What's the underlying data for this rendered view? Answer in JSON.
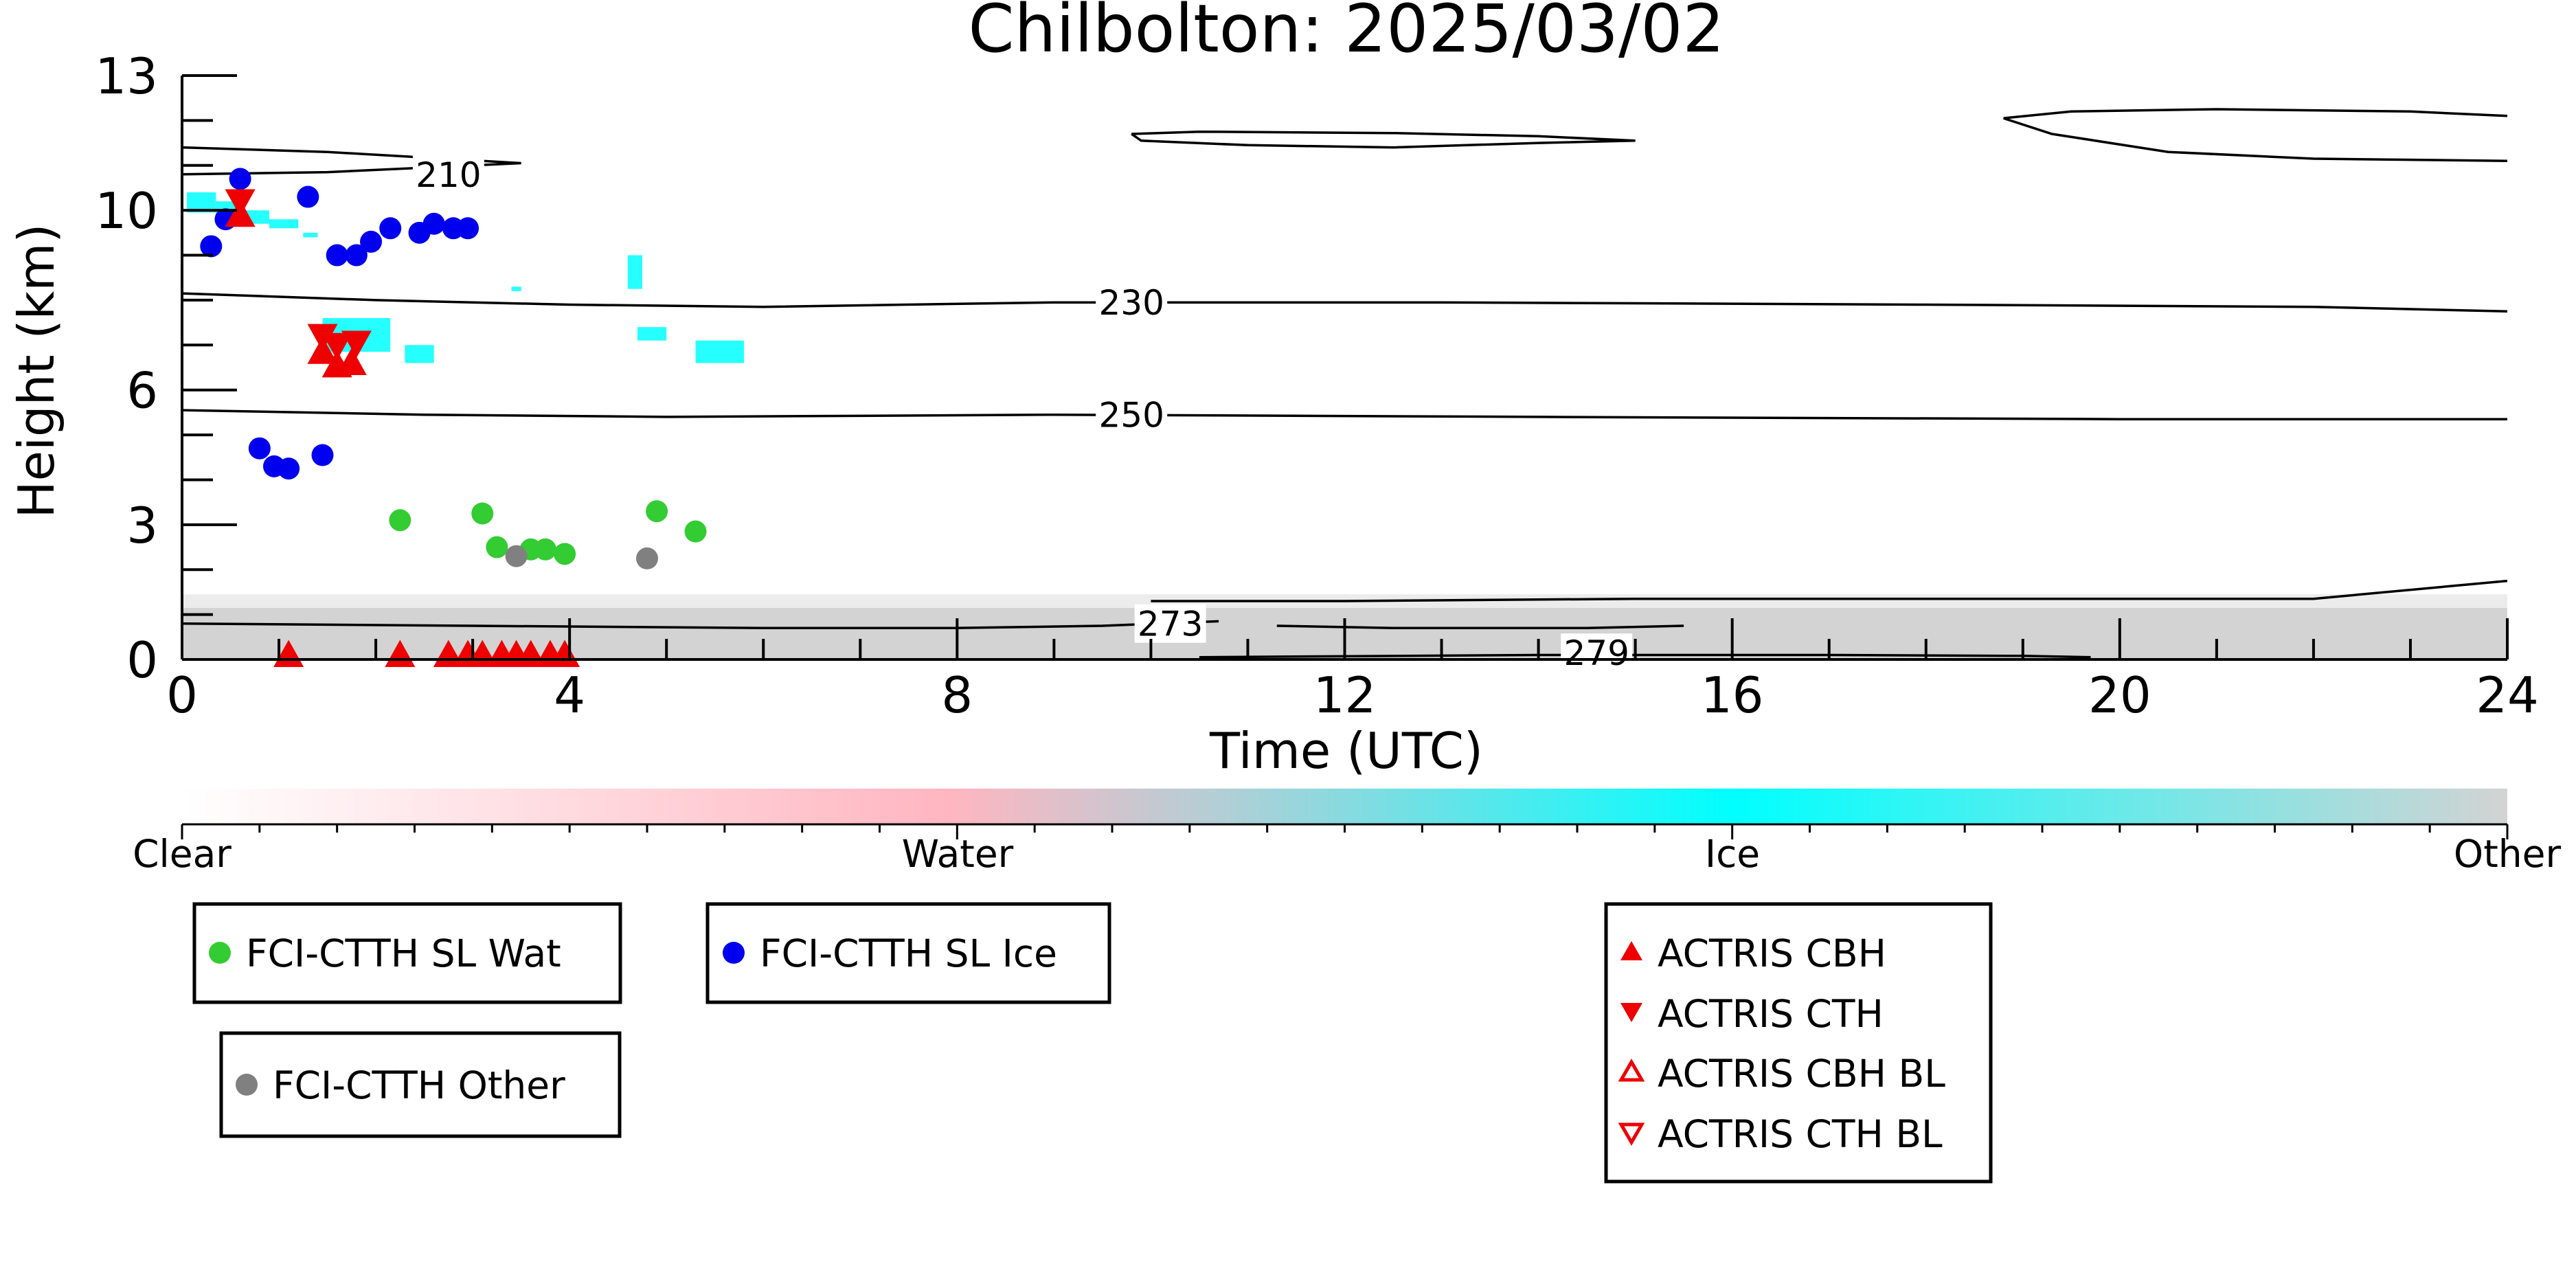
{
  "chart_data": {
    "type": "scatter",
    "title": "Chilbolton: 2025/03/02",
    "xlabel": "Time (UTC)",
    "ylabel": "Height (km)",
    "xlim": [
      0,
      24
    ],
    "ylim": [
      0,
      13
    ],
    "xticks": [
      0,
      4,
      8,
      12,
      16,
      20,
      24
    ],
    "yticks": [
      0,
      3,
      6,
      10,
      13
    ],
    "colorbar": {
      "labels": [
        "Clear",
        "Water",
        "Ice",
        "Other"
      ],
      "colors": [
        "#ffffff",
        "#ffb6c1",
        "#00ffff",
        "#d3d3d3"
      ]
    },
    "series": [
      {
        "name": "FCI-CTTH SL Wat",
        "marker": "circle",
        "color": "#33cc33",
        "points": [
          [
            2.25,
            3.1
          ],
          [
            3.1,
            3.25
          ],
          [
            3.25,
            2.5
          ],
          [
            3.6,
            2.45
          ],
          [
            3.75,
            2.45
          ],
          [
            3.95,
            2.35
          ],
          [
            4.9,
            3.3
          ],
          [
            5.3,
            2.85
          ]
        ]
      },
      {
        "name": "FCI-CTTH SL Ice",
        "marker": "circle",
        "color": "#0000ee",
        "points": [
          [
            0.3,
            9.2
          ],
          [
            0.45,
            9.8
          ],
          [
            0.6,
            10.7
          ],
          [
            0.8,
            4.7
          ],
          [
            0.95,
            4.3
          ],
          [
            1.1,
            4.25
          ],
          [
            1.3,
            10.3
          ],
          [
            1.45,
            4.55
          ],
          [
            1.6,
            9.0
          ],
          [
            1.8,
            9.0
          ],
          [
            1.95,
            9.3
          ],
          [
            2.15,
            9.6
          ],
          [
            2.45,
            9.5
          ],
          [
            2.6,
            9.7
          ],
          [
            2.8,
            9.6
          ],
          [
            2.95,
            9.6
          ]
        ]
      },
      {
        "name": "FCI-CTTH Other",
        "marker": "circle",
        "color": "#808080",
        "points": [
          [
            3.45,
            2.3
          ],
          [
            4.8,
            2.25
          ]
        ]
      },
      {
        "name": "ACTRIS CBH",
        "marker": "triangle-up",
        "color": "#ee0000",
        "points": [
          [
            0.6,
            9.9
          ],
          [
            1.45,
            6.85
          ],
          [
            1.6,
            6.55
          ],
          [
            1.75,
            6.6
          ],
          [
            1.1,
            0.1
          ],
          [
            2.25,
            0.1
          ],
          [
            2.75,
            0.1
          ],
          [
            2.95,
            0.1
          ],
          [
            3.1,
            0.1
          ],
          [
            3.3,
            0.1
          ],
          [
            3.45,
            0.1
          ],
          [
            3.6,
            0.1
          ],
          [
            3.8,
            0.1
          ],
          [
            3.95,
            0.1
          ]
        ]
      },
      {
        "name": "ACTRIS CTH",
        "marker": "triangle-down",
        "color": "#ee0000",
        "points": [
          [
            0.6,
            10.2
          ],
          [
            1.45,
            7.2
          ],
          [
            1.6,
            7.0
          ],
          [
            1.8,
            7.05
          ]
        ]
      },
      {
        "name": "ACTRIS CBH BL",
        "marker": "triangle-up-open",
        "color": "#ee0000",
        "points": []
      },
      {
        "name": "ACTRIS CTH BL",
        "marker": "triangle-down-open",
        "color": "#ee0000",
        "points": []
      }
    ],
    "contours": [
      {
        "label": "210",
        "label_at": [
          2.75,
          10.8
        ],
        "lines": [
          [
            [
              0,
              11.4
            ],
            [
              1.5,
              11.3
            ],
            [
              3.5,
              11.05
            ],
            [
              1.5,
              10.85
            ],
            [
              0,
              10.8
            ]
          ],
          [
            [
              9.8,
              11.7
            ],
            [
              10.5,
              11.75
            ],
            [
              12.5,
              11.72
            ],
            [
              14.0,
              11.65
            ],
            [
              15.0,
              11.55
            ],
            [
              14.0,
              11.5
            ],
            [
              12.5,
              11.4
            ],
            [
              11.0,
              11.45
            ],
            [
              9.9,
              11.55
            ],
            [
              9.8,
              11.7
            ]
          ],
          [
            [
              18.8,
              12.05
            ],
            [
              19.5,
              12.2
            ],
            [
              21.0,
              12.25
            ],
            [
              23.0,
              12.2
            ],
            [
              24.0,
              12.1
            ]
          ],
          [
            [
              18.8,
              12.05
            ],
            [
              19.3,
              11.7
            ],
            [
              20.5,
              11.3
            ],
            [
              22.0,
              11.15
            ],
            [
              24.0,
              11.1
            ]
          ]
        ]
      },
      {
        "label": "230",
        "label_at": [
          9.8,
          7.95
        ],
        "lines": [
          [
            [
              0,
              8.15
            ],
            [
              2.0,
              8.0
            ],
            [
              4.0,
              7.9
            ],
            [
              6.0,
              7.85
            ],
            [
              9.0,
              7.95
            ],
            [
              13.0,
              7.95
            ],
            [
              18.0,
              7.9
            ],
            [
              22.0,
              7.85
            ],
            [
              24.0,
              7.75
            ]
          ]
        ]
      },
      {
        "label": "250",
        "label_at": [
          9.8,
          5.45
        ],
        "lines": [
          [
            [
              0,
              5.55
            ],
            [
              2.5,
              5.45
            ],
            [
              5.0,
              5.4
            ],
            [
              9.0,
              5.45
            ],
            [
              14.0,
              5.4
            ],
            [
              20.0,
              5.35
            ],
            [
              24.0,
              5.35
            ]
          ]
        ]
      },
      {
        "label": "273",
        "label_at": [
          10.2,
          0.8
        ],
        "lines": [
          [
            [
              0,
              0.8
            ],
            [
              3.0,
              0.75
            ],
            [
              6.0,
              0.7
            ],
            [
              8.0,
              0.7
            ],
            [
              9.5,
              0.75
            ],
            [
              10.7,
              0.85
            ]
          ],
          [
            [
              10.0,
              1.3
            ],
            [
              12.0,
              1.3
            ],
            [
              15.0,
              1.35
            ],
            [
              18.0,
              1.35
            ],
            [
              22.0,
              1.35
            ],
            [
              24.0,
              1.75
            ]
          ],
          [
            [
              11.3,
              0.75
            ],
            [
              12.5,
              0.7
            ],
            [
              14.5,
              0.7
            ],
            [
              15.5,
              0.75
            ]
          ]
        ]
      },
      {
        "label": "279",
        "label_at": [
          14.6,
          0.15
        ],
        "lines": [
          [
            [
              10.5,
              0.05
            ],
            [
              14.0,
              0.1
            ],
            [
              17.0,
              0.1
            ],
            [
              19.0,
              0.08
            ],
            [
              19.7,
              0.05
            ]
          ]
        ]
      }
    ],
    "legend": {
      "placement": "below",
      "boxes": [
        {
          "entries": [
            "FCI-CTTH SL Wat"
          ]
        },
        {
          "entries": [
            "FCI-CTTH SL Ice"
          ]
        },
        {
          "entries": [
            "FCI-CTTH Other"
          ]
        },
        {
          "entries": [
            "ACTRIS CBH",
            "ACTRIS CTH",
            "ACTRIS CBH BL",
            "ACTRIS CTH BL"
          ]
        }
      ]
    }
  }
}
